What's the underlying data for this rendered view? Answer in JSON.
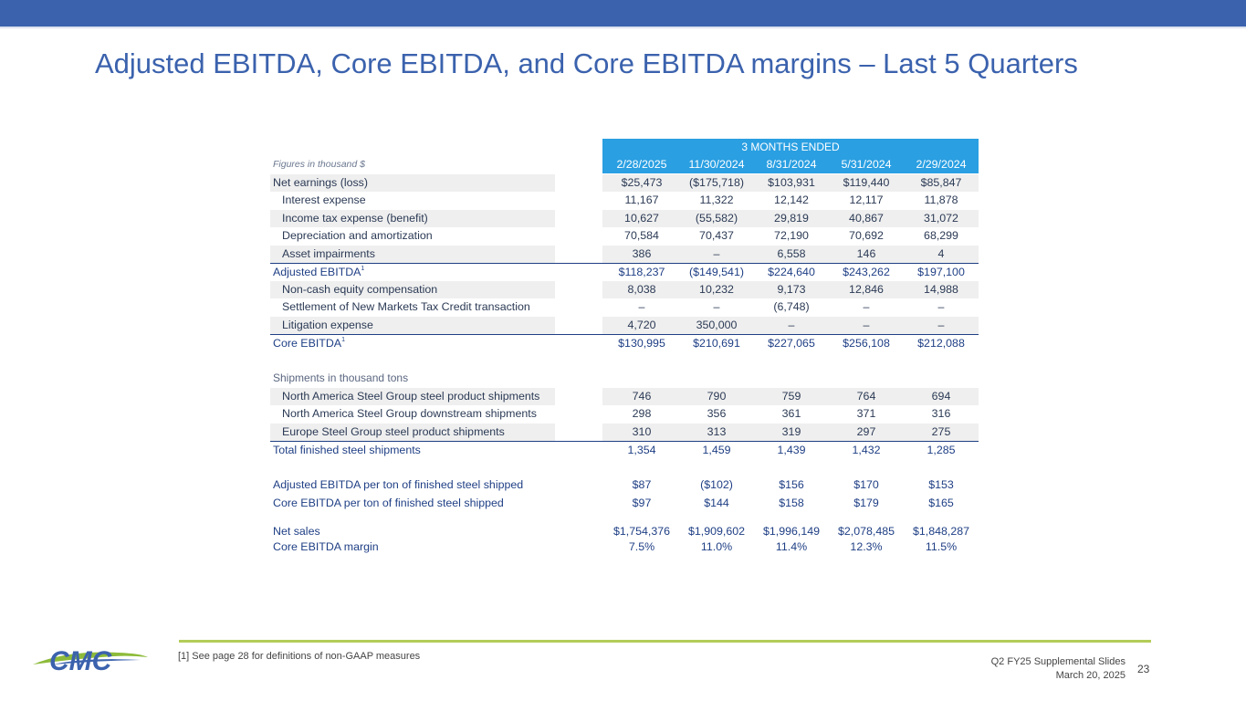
{
  "title": "Adjusted EBITDA, Core EBITDA, and Core EBITDA margins – Last 5 Quarters",
  "table": {
    "group_header": "3 MONTHS ENDED",
    "units_label": "Figures in thousand $",
    "dates": [
      "2/28/2025",
      "11/30/2024",
      "8/31/2024",
      "5/31/2024",
      "2/29/2024"
    ],
    "rows": [
      {
        "label": "Net earnings (loss)",
        "values": [
          "$25,473",
          "($175,718)",
          "$103,931",
          "$119,440",
          "$85,847"
        ]
      },
      {
        "label": "Interest expense",
        "values": [
          "11,167",
          "11,322",
          "12,142",
          "12,117",
          "11,878"
        ]
      },
      {
        "label": "Income tax expense (benefit)",
        "values": [
          "10,627",
          "(55,582)",
          "29,819",
          "40,867",
          "31,072"
        ]
      },
      {
        "label": "Depreciation and amortization",
        "values": [
          "70,584",
          "70,437",
          "72,190",
          "70,692",
          "68,299"
        ]
      },
      {
        "label": "Asset impairments",
        "values": [
          "386",
          "–",
          "6,558",
          "146",
          "4"
        ]
      },
      {
        "label": "Adjusted EBITDA",
        "sup": "1",
        "values": [
          "$118,237",
          "($149,541)",
          "$224,640",
          "$243,262",
          "$197,100"
        ]
      },
      {
        "label": "Non-cash equity compensation",
        "values": [
          "8,038",
          "10,232",
          "9,173",
          "12,846",
          "14,988"
        ]
      },
      {
        "label": "Settlement of New Markets Tax Credit transaction",
        "values": [
          "–",
          "–",
          "(6,748)",
          "–",
          "–"
        ]
      },
      {
        "label": "Litigation expense",
        "values": [
          "4,720",
          "350,000",
          "–",
          "–",
          "–"
        ]
      },
      {
        "label": "Core EBITDA",
        "sup": "1",
        "values": [
          "$130,995",
          "$210,691",
          "$227,065",
          "$256,108",
          "$212,088"
        ]
      },
      {
        "label": "Shipments in thousand tons"
      },
      {
        "label": "North America Steel Group steel product shipments",
        "values": [
          "746",
          "790",
          "759",
          "764",
          "694"
        ]
      },
      {
        "label": "North America Steel Group downstream shipments",
        "values": [
          "298",
          "356",
          "361",
          "371",
          "316"
        ]
      },
      {
        "label": "Europe Steel Group steel product shipments",
        "values": [
          "310",
          "313",
          "319",
          "297",
          "275"
        ]
      },
      {
        "label": "Total finished steel shipments",
        "values": [
          "1,354",
          "1,459",
          "1,439",
          "1,432",
          "1,285"
        ]
      },
      {
        "label": "Adjusted EBITDA per ton of finished steel shipped",
        "values": [
          "$87",
          "($102)",
          "$156",
          "$170",
          "$153"
        ]
      },
      {
        "label": "Core EBITDA per ton of finished steel shipped",
        "values": [
          "$97",
          "$144",
          "$158",
          "$179",
          "$165"
        ]
      },
      {
        "label": "Net sales",
        "values": [
          "$1,754,376",
          "$1,909,602",
          "$1,996,149",
          "$2,078,485",
          "$1,848,287"
        ]
      },
      {
        "label": "Core EBITDA margin",
        "values": [
          "7.5%",
          "11.0%",
          "11.4%",
          "12.3%",
          "11.5%"
        ]
      }
    ]
  },
  "footer": {
    "logo_text": "CMC",
    "footnote": "[1] See page 28 for definitions of non-GAAP measures",
    "deck": "Q2 FY25 Supplemental Slides",
    "date": "March 20, 2025",
    "page": "23"
  },
  "colors": {
    "brand_blue": "#3b62ad",
    "header_blue": "#2a9fe2",
    "accent_green": "#b3cd58"
  }
}
